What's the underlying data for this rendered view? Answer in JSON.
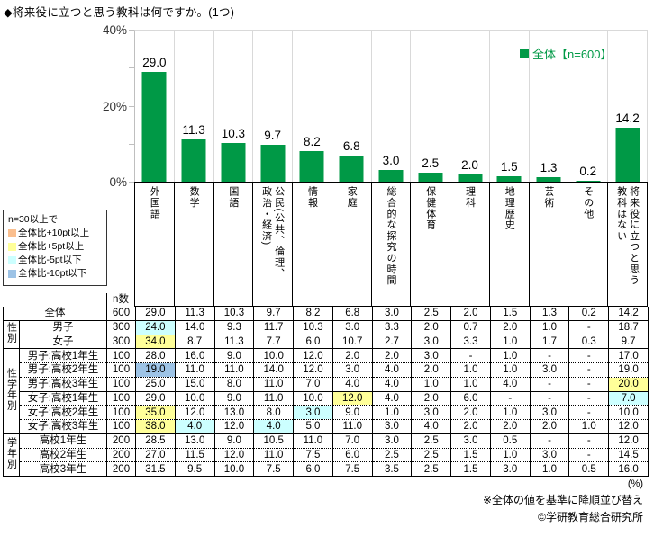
{
  "title": "◆将来役に立つと思う教科は何ですか。(1つ)",
  "chart_data": {
    "type": "bar",
    "title": "◆将来役に立つと思う教科は何ですか。(1つ)",
    "categories": [
      "外国語",
      "数学",
      "国語",
      "公民(公共、倫理、政治・経済)",
      "情報",
      "家庭",
      "総合的な探究の時間",
      "保健体育",
      "理科",
      "地理歴史",
      "芸術",
      "その他",
      "将来役に立つと思う教科はない"
    ],
    "values": [
      29.0,
      11.3,
      10.3,
      9.7,
      8.2,
      6.8,
      3.0,
      2.5,
      2.0,
      1.5,
      1.3,
      0.2,
      14.2
    ],
    "labels": [
      "29.0",
      "11.3",
      "10.3",
      "9.7",
      "8.2",
      "6.8",
      "3.0",
      "2.5",
      "2.0",
      "1.5",
      "1.3",
      "0.2",
      "14.2"
    ],
    "xlabel": "",
    "ylabel": "%",
    "ylim": [
      0,
      40
    ],
    "grid": "vertical-category-separators",
    "bar_color": "#009946",
    "legend": "全体【n=600】",
    "legend_position": "top-right"
  },
  "axis": {
    "labels": [
      {
        "text": "40%",
        "pos": 0
      },
      {
        "text": "20%",
        "pos": 50
      },
      {
        "text": "0%",
        "pos": 100
      }
    ]
  },
  "comparison_legend": {
    "heading": "n=30以上で",
    "items": [
      {
        "label": "全体比+10pt以上",
        "color": "#FABF8F"
      },
      {
        "label": "全体比+5pt以上",
        "color": "#FFFF99"
      },
      {
        "label": "全体比-5pt以下",
        "color": "#CCFFFF"
      },
      {
        "label": "全体比-10pt以下",
        "color": "#9DC3E6"
      }
    ]
  },
  "table": {
    "n_header": "n数",
    "highlight_colors": {
      "cyan": "#CCFFFF",
      "yellow": "#FFFF99",
      "blue": "#9DC3E6",
      "orange": "#FABF8F"
    },
    "rows": [
      {
        "wide": true,
        "label": "全体",
        "n": "600",
        "sep": "solid",
        "values": [
          "29.0",
          "11.3",
          "10.3",
          "9.7",
          "8.2",
          "6.8",
          "3.0",
          "2.5",
          "2.0",
          "1.5",
          "1.3",
          "0.2",
          "14.2"
        ],
        "hl": {}
      },
      {
        "group": "性別",
        "grouprows": 2,
        "label": "男子",
        "n": "300",
        "sep": "dotted",
        "values": [
          "24.0",
          "14.0",
          "9.3",
          "11.7",
          "10.3",
          "3.0",
          "3.3",
          "2.0",
          "0.7",
          "2.0",
          "1.0",
          "-",
          "18.7"
        ],
        "hl": {
          "0": "cyan"
        }
      },
      {
        "label": "女子",
        "n": "300",
        "sep": "solid",
        "values": [
          "34.0",
          "8.7",
          "11.3",
          "7.7",
          "6.0",
          "10.7",
          "2.7",
          "3.0",
          "3.3",
          "1.0",
          "1.7",
          "0.3",
          "9.7"
        ],
        "hl": {
          "0": "yellow"
        }
      },
      {
        "group": "性学年別",
        "grouprows": 6,
        "label": "男子:高校1年生",
        "n": "100",
        "sep": "dotted",
        "values": [
          "28.0",
          "16.0",
          "9.0",
          "10.0",
          "12.0",
          "2.0",
          "2.0",
          "3.0",
          "-",
          "1.0",
          "-",
          "-",
          "17.0"
        ],
        "hl": {}
      },
      {
        "label": "男子:高校2年生",
        "n": "100",
        "sep": "dotted",
        "values": [
          "19.0",
          "11.0",
          "11.0",
          "14.0",
          "12.0",
          "3.0",
          "4.0",
          "2.0",
          "1.0",
          "1.0",
          "3.0",
          "-",
          "19.0"
        ],
        "hl": {
          "0": "blue"
        }
      },
      {
        "label": "男子:高校3年生",
        "n": "100",
        "sep": "solid",
        "values": [
          "25.0",
          "15.0",
          "8.0",
          "11.0",
          "7.0",
          "4.0",
          "4.0",
          "1.0",
          "1.0",
          "4.0",
          "-",
          "-",
          "20.0"
        ],
        "hl": {
          "12": "yellow"
        }
      },
      {
        "label": "女子:高校1年生",
        "n": "100",
        "sep": "dotted",
        "values": [
          "29.0",
          "10.0",
          "9.0",
          "11.0",
          "10.0",
          "12.0",
          "4.0",
          "2.0",
          "6.0",
          "-",
          "-",
          "-",
          "7.0"
        ],
        "hl": {
          "5": "yellow",
          "12": "cyan"
        }
      },
      {
        "label": "女子:高校2年生",
        "n": "100",
        "sep": "dotted",
        "values": [
          "35.0",
          "12.0",
          "13.0",
          "8.0",
          "3.0",
          "9.0",
          "1.0",
          "3.0",
          "2.0",
          "1.0",
          "3.0",
          "-",
          "10.0"
        ],
        "hl": {
          "0": "yellow",
          "4": "cyan"
        }
      },
      {
        "label": "女子:高校3年生",
        "n": "100",
        "sep": "solid",
        "values": [
          "38.0",
          "4.0",
          "12.0",
          "4.0",
          "5.0",
          "11.0",
          "3.0",
          "4.0",
          "2.0",
          "2.0",
          "2.0",
          "1.0",
          "12.0"
        ],
        "hl": {
          "0": "yellow",
          "1": "cyan",
          "3": "cyan"
        }
      },
      {
        "group": "学年別",
        "grouprows": 3,
        "label": "高校1年生",
        "n": "200",
        "sep": "dotted",
        "values": [
          "28.5",
          "13.0",
          "9.0",
          "10.5",
          "11.0",
          "7.0",
          "3.0",
          "2.5",
          "3.0",
          "0.5",
          "-",
          "-",
          "12.0"
        ],
        "hl": {}
      },
      {
        "label": "高校2年生",
        "n": "200",
        "sep": "dotted",
        "values": [
          "27.0",
          "11.5",
          "12.0",
          "11.0",
          "7.5",
          "6.0",
          "2.5",
          "2.5",
          "1.5",
          "1.0",
          "3.0",
          "-",
          "14.5"
        ],
        "hl": {}
      },
      {
        "label": "高校3年生",
        "n": "200",
        "sep": "solid",
        "values": [
          "31.5",
          "9.5",
          "10.0",
          "7.5",
          "6.0",
          "7.5",
          "3.5",
          "2.5",
          "1.5",
          "3.0",
          "1.0",
          "0.5",
          "16.0"
        ],
        "hl": {}
      }
    ]
  },
  "footer": {
    "percent": "(%)",
    "note": "※全体の値を基準に降順並び替え",
    "copyright": "©学研教育総合研究所"
  }
}
